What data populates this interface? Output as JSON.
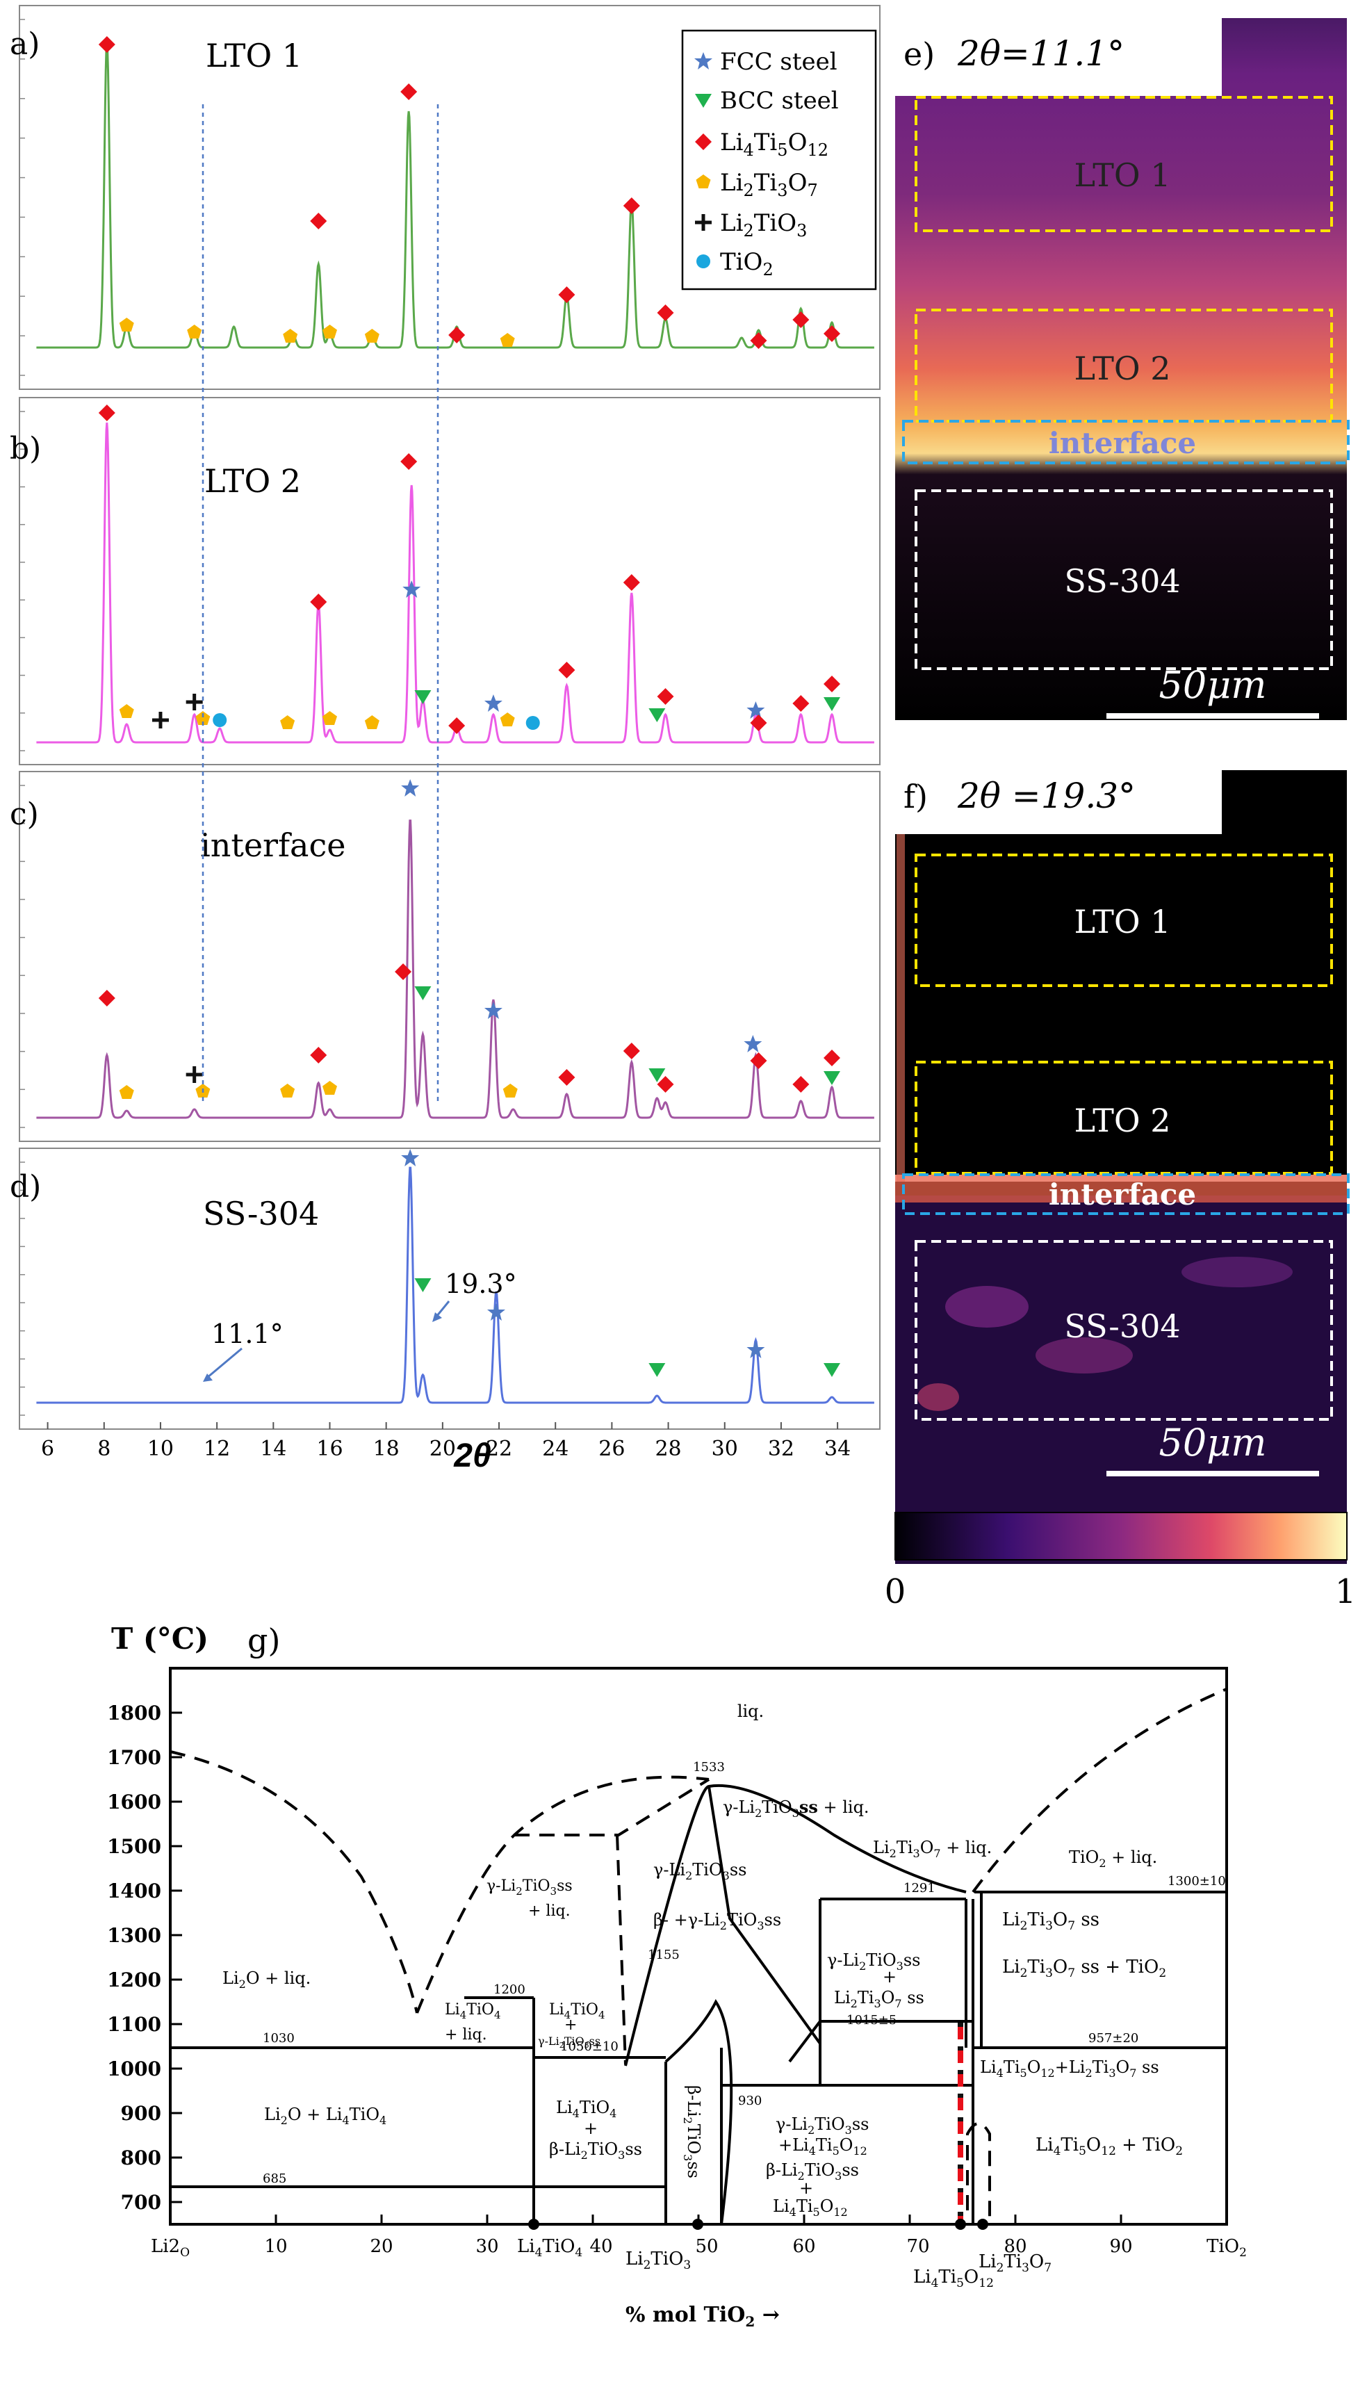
{
  "xrd": {
    "x_ticks": [
      6,
      8,
      10,
      12,
      14,
      16,
      18,
      20,
      22,
      24,
      26,
      28,
      30,
      32,
      34
    ],
    "xlabel": "2θ",
    "markers": {
      "d_11": "11.1°",
      "d_19": "19.3°"
    },
    "panels": [
      {
        "letter": "a)",
        "title": "LTO 1",
        "color": "#5aa84a"
      },
      {
        "letter": "b)",
        "title": "LTO 2",
        "color": "#ec5ce6"
      },
      {
        "letter": "c)",
        "title": "interface",
        "color": "#a256a2"
      },
      {
        "letter": "d)",
        "title": "SS-304",
        "color": "#5673dc"
      }
    ],
    "legend": [
      {
        "symbol": "star",
        "label": "FCC steel",
        "color": "#4f79c4"
      },
      {
        "symbol": "triangle",
        "label": "BCC steel",
        "color": "#1fb14e"
      },
      {
        "symbol": "diamond",
        "label": "Li4Ti5O12",
        "color": "#e8101a"
      },
      {
        "symbol": "pentagon",
        "label": "Li2Ti3O7",
        "color": "#f7b500"
      },
      {
        "symbol": "cross",
        "label": "Li2TiO3",
        "color": "#111111"
      },
      {
        "symbol": "circle",
        "label": "TiO2",
        "color": "#1aa6de"
      }
    ]
  },
  "maps": {
    "e": {
      "letter": "e)",
      "theta": "2θ=11.1°"
    },
    "f": {
      "letter": "f)",
      "theta": "2θ =19.3°"
    },
    "regions": [
      "LTO 1",
      "LTO 2",
      "interface",
      "SS-304"
    ],
    "scale": "50μm",
    "colorbar": {
      "min": "0",
      "max": "1"
    }
  },
  "phase": {
    "letter": "g)",
    "ylabel": "T (°C)",
    "xlabel": "% mol TiO2 →",
    "y_ticks": [
      700,
      800,
      900,
      1000,
      1100,
      1200,
      1300,
      1400,
      1500,
      1600,
      1700,
      1800
    ],
    "x_ticks": [
      "Li2O",
      "10",
      "20",
      "30",
      "40",
      "50",
      "60",
      "70",
      "80",
      "90",
      "TiO2"
    ],
    "temps": [
      "1533",
      "1200",
      "1291",
      "1300±10",
      "1155",
      "1030",
      "1050±10",
      "1015±5",
      "957±20",
      "930",
      "685"
    ],
    "regions": [
      "liq.",
      "γ-Li2TiO3ss + liq.",
      "Li2Ti3O7 + liq.",
      "TiO2 + liq.",
      "γ-Li2TiO3ss + liq.",
      "γ-Li2TiO3ss",
      "β- +γ-Li2TiO3ss",
      "Li2O + liq.",
      "Li4TiO4 + liq.",
      "Li4TiO4 + γ-Li2TiO3ss",
      "γ-Li2TiO3ss + Li2Ti3O7 ss",
      "Li2Ti3O7 ss",
      "Li2Ti3O7 ss + TiO2",
      "Li4Ti5O12 + Li2Ti3O7 ss",
      "Li2O + Li4TiO4",
      "Li4TiO4 + β-Li2TiO3ss",
      "β-Li2TiO3ss",
      "γ-Li2TiO3ss + Li4Ti5O12",
      "β-Li2TiO3ss + Li4Ti5O12",
      "Li4Ti5O12 + TiO2"
    ],
    "compounds": [
      "Li4TiO4",
      "Li2TiO3",
      "Li4Ti5O12",
      "Li2Ti3O7"
    ]
  }
}
